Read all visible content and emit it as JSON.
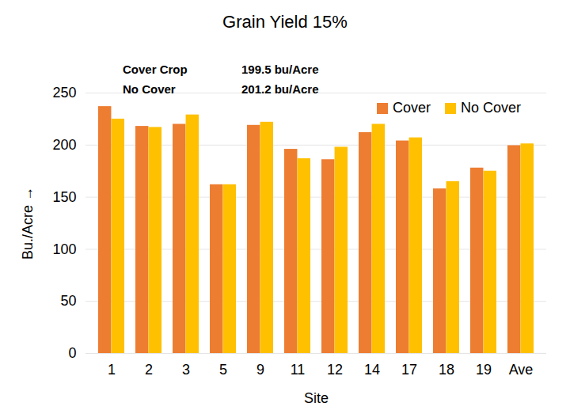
{
  "chart_data": {
    "type": "bar",
    "title": "Grain Yield 15%",
    "x_label": "Site",
    "y_label": "Bu./Acre",
    "categories": [
      "1",
      "2",
      "3",
      "5",
      "9",
      "11",
      "12",
      "14",
      "17",
      "18",
      "19",
      "Ave"
    ],
    "series": [
      {
        "name": "Cover",
        "color": "#ed7d31",
        "values": [
          237,
          218,
          220,
          162,
          219,
          196,
          186,
          212,
          204,
          158,
          178,
          199.5
        ]
      },
      {
        "name": "No Cover",
        "color": "#ffc000",
        "values": [
          225,
          217,
          229,
          162,
          222,
          187,
          198,
          220,
          207,
          165,
          175,
          201.2
        ]
      }
    ],
    "annotations": [
      "Cover Crop",
      "No Cover",
      "199.5 bu/Acre",
      "201.2 bu/Acre"
    ],
    "ylim": [
      0,
      250
    ],
    "yticks": [
      0,
      50,
      100,
      150,
      200,
      250
    ],
    "grid": true,
    "legend": "top-right"
  }
}
